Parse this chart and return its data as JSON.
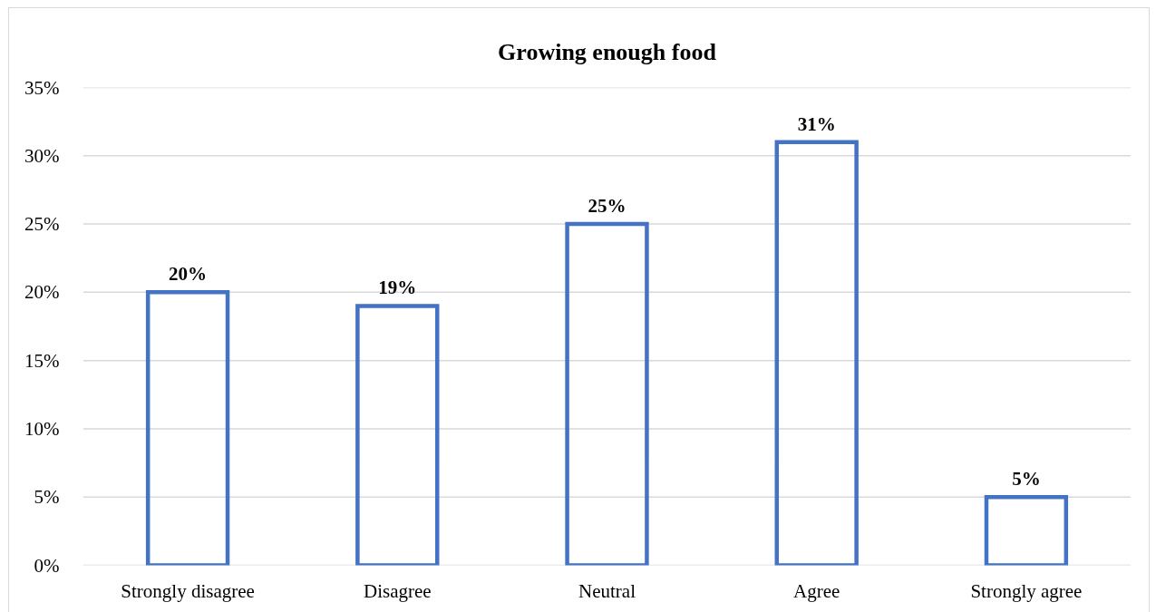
{
  "chart_data": {
    "type": "bar",
    "title": "Growing enough food",
    "categories": [
      "Strongly disagree",
      "Disagree",
      "Neutral",
      "Agree",
      "Strongly agree"
    ],
    "series": [
      {
        "color": "#4472c4",
        "values": [
          20,
          19,
          25,
          31,
          5
        ],
        "value_labels": [
          "20%",
          "19%",
          "25%",
          "31%",
          "5%"
        ]
      }
    ],
    "ylim": [
      0,
      35
    ],
    "yticks": [
      {
        "value": 0,
        "label": "0%"
      },
      {
        "value": 5,
        "label": "5%"
      },
      {
        "value": 10,
        "label": "10%"
      },
      {
        "value": 15,
        "label": "15%"
      },
      {
        "value": 20,
        "label": "20%"
      },
      {
        "value": 25,
        "label": "25%"
      },
      {
        "value": 30,
        "label": "30%"
      },
      {
        "value": 35,
        "label": "35%"
      }
    ],
    "grid": "y"
  }
}
